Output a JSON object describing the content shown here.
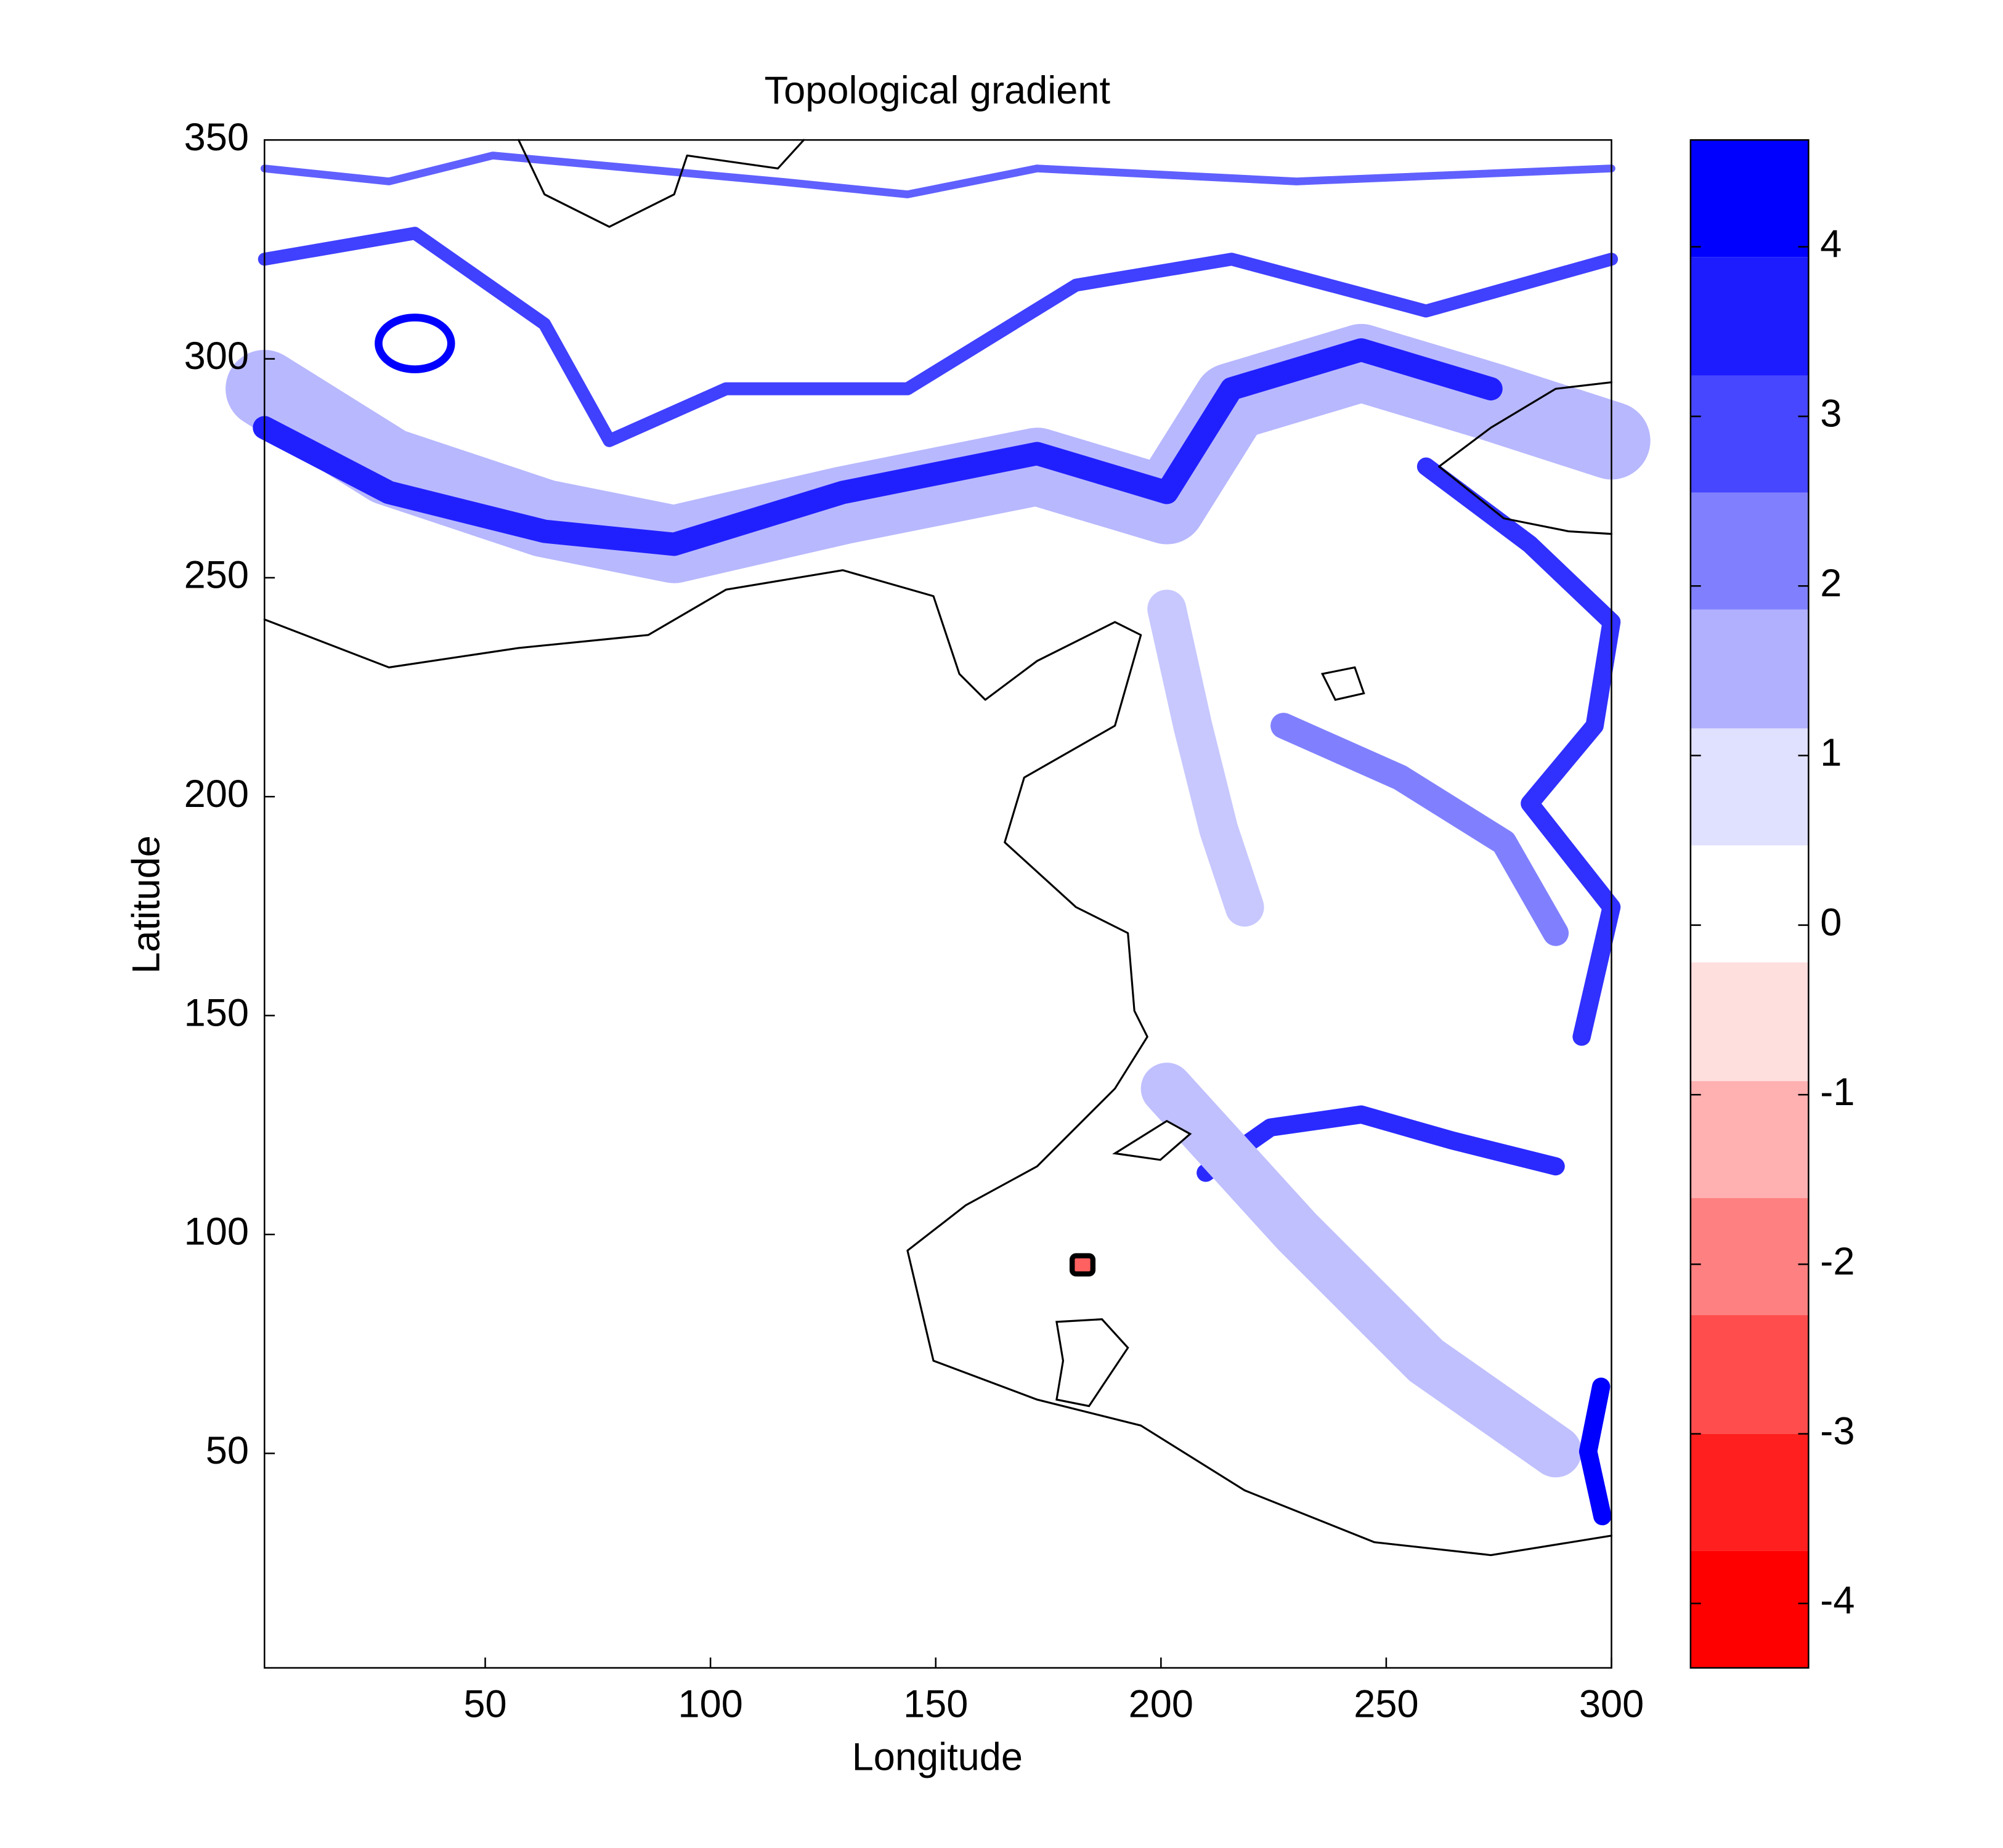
{
  "chart_data": {
    "type": "contour",
    "title": "Topological gradient",
    "x_label": "Longitude",
    "y_label": "Latitude",
    "xlim": [
      1,
      300
    ],
    "ylim": [
      1,
      350
    ],
    "xticks": [
      50,
      100,
      150,
      200,
      250,
      300
    ],
    "yticks": [
      50,
      100,
      150,
      200,
      250,
      300,
      350
    ],
    "colorbar": {
      "levels": [
        4.63,
        3.94,
        3.24,
        2.55,
        1.86,
        1.16,
        0.47,
        -0.22,
        -0.92,
        -1.61,
        -2.3,
        -3.0,
        -3.69,
        -4.38
      ],
      "colors": [
        "#0000ff",
        "#1c1cff",
        "#4747ff",
        "#8080ff",
        "#b0b0ff",
        "#e0e0ff",
        "#ffffff",
        "#ffdede",
        "#ffb0b0",
        "#ff8080",
        "#ff4d4d",
        "#ff1f1f",
        "#ff0000"
      ],
      "ticks": [
        -4,
        -3,
        -2,
        -1,
        0,
        1,
        2,
        3,
        4
      ]
    }
  }
}
